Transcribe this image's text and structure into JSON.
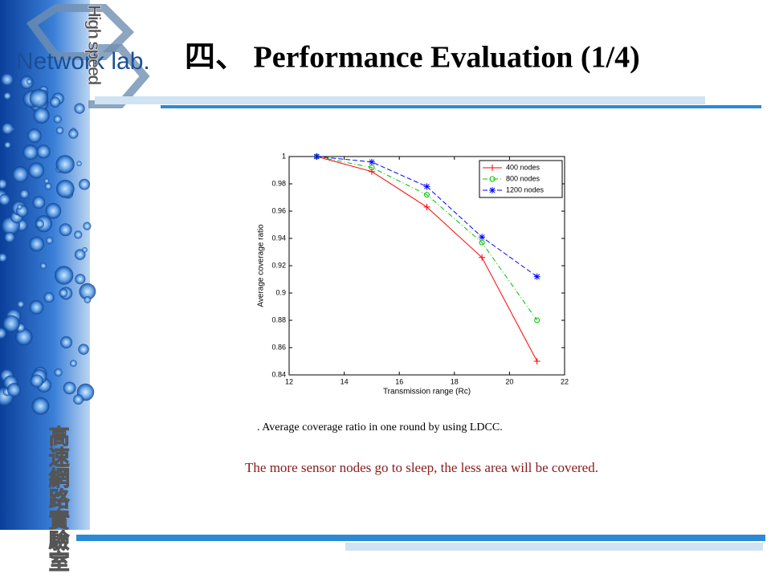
{
  "slide": {
    "title": "四、 Performance Evaluation (1/4)",
    "logo": "Network lab.",
    "logo_vertical": "High speed",
    "lab_name": "高速網路實驗室",
    "caption": ". Average coverage ratio in one round by using LDCC.",
    "note": "The more sensor nodes go to sleep, the less area will be covered."
  },
  "chart_data": {
    "type": "line",
    "xlabel": "Transmission range (Rc)",
    "ylabel": "Average coverage ratio",
    "x": [
      13,
      15,
      17,
      19,
      21
    ],
    "series": [
      {
        "name": "400 nodes",
        "color": "#ff0000",
        "linestyle": "solid",
        "marker": "+",
        "values": [
          1.0,
          0.989,
          0.963,
          0.926,
          0.85
        ]
      },
      {
        "name": "800 nodes",
        "color": "#00c000",
        "linestyle": "dashdot",
        "marker": "o",
        "values": [
          1.0,
          0.992,
          0.972,
          0.937,
          0.88
        ]
      },
      {
        "name": "1200 nodes",
        "color": "#0000ff",
        "linestyle": "dashed",
        "marker": "*",
        "values": [
          1.0,
          0.996,
          0.978,
          0.941,
          0.912
        ]
      }
    ],
    "xlim": [
      12,
      22
    ],
    "xticks": [
      12,
      14,
      16,
      18,
      20,
      22
    ],
    "ylim": [
      0.84,
      1
    ],
    "yticks": [
      0.84,
      0.86,
      0.88,
      0.9,
      0.92,
      0.94,
      0.96,
      0.98,
      1
    ],
    "legend": "upper right"
  }
}
